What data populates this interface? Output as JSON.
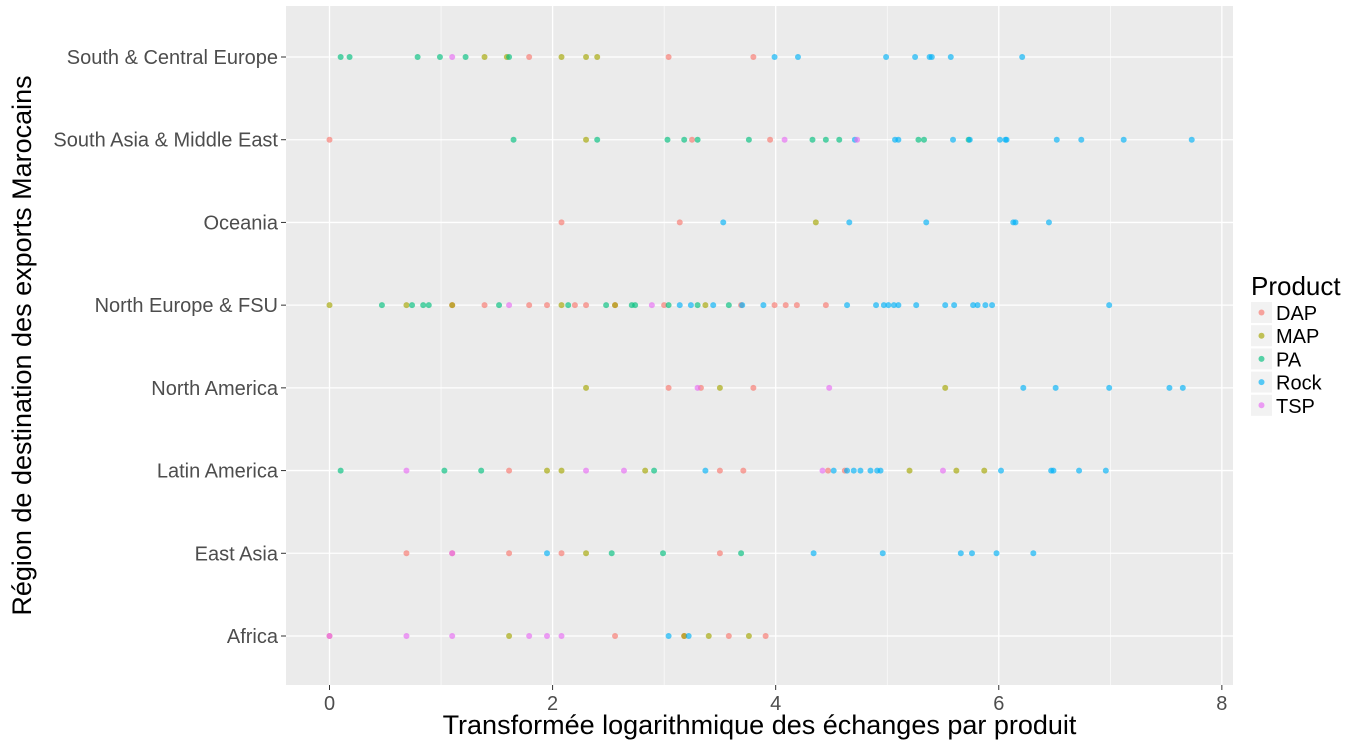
{
  "chart_data": {
    "type": "scatter",
    "title": "",
    "xlabel": "Transformée logarithmique des échanges par produit",
    "ylabel": "Région de destination des exports Marocains",
    "xlim": [
      -0.39,
      8.1
    ],
    "x_ticks": [
      0,
      2,
      4,
      6,
      8
    ],
    "x_tick_labels": [
      "0",
      "2",
      "4",
      "6",
      "8"
    ],
    "categories": [
      "Africa",
      "East Asia",
      "Latin America",
      "North America",
      "North Europe & FSU",
      "Oceania",
      "South Asia & Middle East",
      "South & Central Europe"
    ],
    "grid": true,
    "legend_position": "right",
    "legend_title": "Product",
    "colors": {
      "DAP": "#F8766D",
      "MAP": "#A3A500",
      "PA": "#00BF7D",
      "Rock": "#00B0F6",
      "TSP": "#E76BF3",
      "panel_background": "#EBEBEB",
      "grid_line": "#FFFFFF"
    },
    "series": [
      {
        "name": "DAP",
        "points": [
          {
            "region": "South & Central Europe",
            "x": [
              1.79,
              3.04,
              3.8
            ]
          },
          {
            "region": "South Asia & Middle East",
            "x": [
              0.0,
              3.25,
              3.95
            ]
          },
          {
            "region": "Oceania",
            "x": [
              2.08,
              3.14
            ]
          },
          {
            "region": "North Europe & FSU",
            "x": [
              1.1,
              1.39,
              1.79,
              1.95,
              2.2,
              2.3,
              2.56,
              3.0,
              3.69,
              3.99,
              4.09,
              4.19,
              4.45
            ]
          },
          {
            "region": "North America",
            "x": [
              3.04,
              3.33,
              3.8
            ]
          },
          {
            "region": "Latin America",
            "x": [
              1.61,
              3.5,
              3.71,
              4.47,
              4.62
            ]
          },
          {
            "region": "East Asia",
            "x": [
              0.69,
              1.1,
              1.61,
              2.08,
              3.5
            ]
          },
          {
            "region": "Africa",
            "x": [
              0.0,
              2.56,
              3.18,
              3.58,
              3.91
            ]
          }
        ]
      },
      {
        "name": "MAP",
        "points": [
          {
            "region": "South & Central Europe",
            "x": [
              1.39,
              1.59,
              2.08,
              2.3,
              2.4
            ]
          },
          {
            "region": "South Asia & Middle East",
            "x": [
              2.3
            ]
          },
          {
            "region": "Oceania",
            "x": [
              4.36
            ]
          },
          {
            "region": "North Europe & FSU",
            "x": [
              0.0,
              0.69,
              1.1,
              2.08,
              2.56,
              3.37
            ]
          },
          {
            "region": "North America",
            "x": [
              2.3,
              3.5,
              5.52
            ]
          },
          {
            "region": "Latin America",
            "x": [
              1.95,
              2.08,
              2.83,
              5.2,
              5.62,
              5.87
            ]
          },
          {
            "region": "East Asia",
            "x": [
              2.3
            ]
          },
          {
            "region": "Africa",
            "x": [
              1.61,
              3.18,
              3.4,
              3.76
            ]
          }
        ]
      },
      {
        "name": "PA",
        "points": [
          {
            "region": "South & Central Europe",
            "x": [
              0.1,
              0.18,
              0.79,
              0.99,
              1.22,
              1.61
            ]
          },
          {
            "region": "South Asia & Middle East",
            "x": [
              1.65,
              2.4,
              3.03,
              3.18,
              3.3,
              3.76,
              4.33,
              4.45,
              4.57,
              5.28,
              5.33,
              5.73
            ]
          },
          {
            "region": "North Europe & FSU",
            "x": [
              0.47,
              0.74,
              0.84,
              0.89,
              1.52,
              2.14,
              2.48,
              2.71,
              2.74,
              3.04,
              3.3,
              3.58
            ]
          },
          {
            "region": "Latin America",
            "x": [
              0.1,
              1.03,
              1.36,
              2.91
            ]
          },
          {
            "region": "East Asia",
            "x": [
              2.53,
              2.99,
              3.69
            ]
          }
        ]
      },
      {
        "name": "Rock",
        "points": [
          {
            "region": "South & Central Europe",
            "x": [
              3.99,
              4.2,
              4.99,
              5.25,
              5.38,
              5.4,
              5.57,
              6.21
            ]
          },
          {
            "region": "South Asia & Middle East",
            "x": [
              4.71,
              5.07,
              5.1,
              5.59,
              5.74,
              6.01,
              6.06,
              6.07,
              6.52,
              6.74,
              7.12,
              7.73
            ]
          },
          {
            "region": "Oceania",
            "x": [
              3.53,
              4.66,
              5.35,
              6.13,
              6.15,
              6.45
            ]
          },
          {
            "region": "North Europe & FSU",
            "x": [
              3.14,
              3.24,
              3.44,
              3.7,
              3.89,
              4.64,
              4.9,
              4.97,
              5.01,
              5.06,
              5.1,
              5.26,
              5.52,
              5.6,
              5.77,
              5.81,
              5.88,
              5.94,
              6.99
            ]
          },
          {
            "region": "North America",
            "x": [
              6.22,
              6.51,
              6.99,
              7.53,
              7.65
            ]
          },
          {
            "region": "Latin America",
            "x": [
              3.37,
              4.52,
              4.64,
              4.7,
              4.76,
              4.85,
              4.91,
              4.94,
              6.02,
              6.47,
              6.49,
              6.72,
              6.96
            ]
          },
          {
            "region": "East Asia",
            "x": [
              1.95,
              4.34,
              4.96,
              5.66,
              5.76,
              5.98,
              6.31
            ]
          },
          {
            "region": "Africa",
            "x": [
              3.04,
              3.22
            ]
          }
        ]
      },
      {
        "name": "TSP",
        "points": [
          {
            "region": "South & Central Europe",
            "x": [
              1.1
            ]
          },
          {
            "region": "South Asia & Middle East",
            "x": [
              4.08,
              4.73
            ]
          },
          {
            "region": "North Europe & FSU",
            "x": [
              1.61,
              2.89
            ]
          },
          {
            "region": "North America",
            "x": [
              3.3,
              4.48
            ]
          },
          {
            "region": "Latin America",
            "x": [
              0.69,
              2.3,
              2.64,
              4.42,
              5.5
            ]
          },
          {
            "region": "East Asia",
            "x": [
              1.1
            ]
          },
          {
            "region": "Africa",
            "x": [
              0.0,
              0.69,
              1.1,
              1.79,
              1.95,
              2.08
            ]
          }
        ]
      }
    ]
  }
}
